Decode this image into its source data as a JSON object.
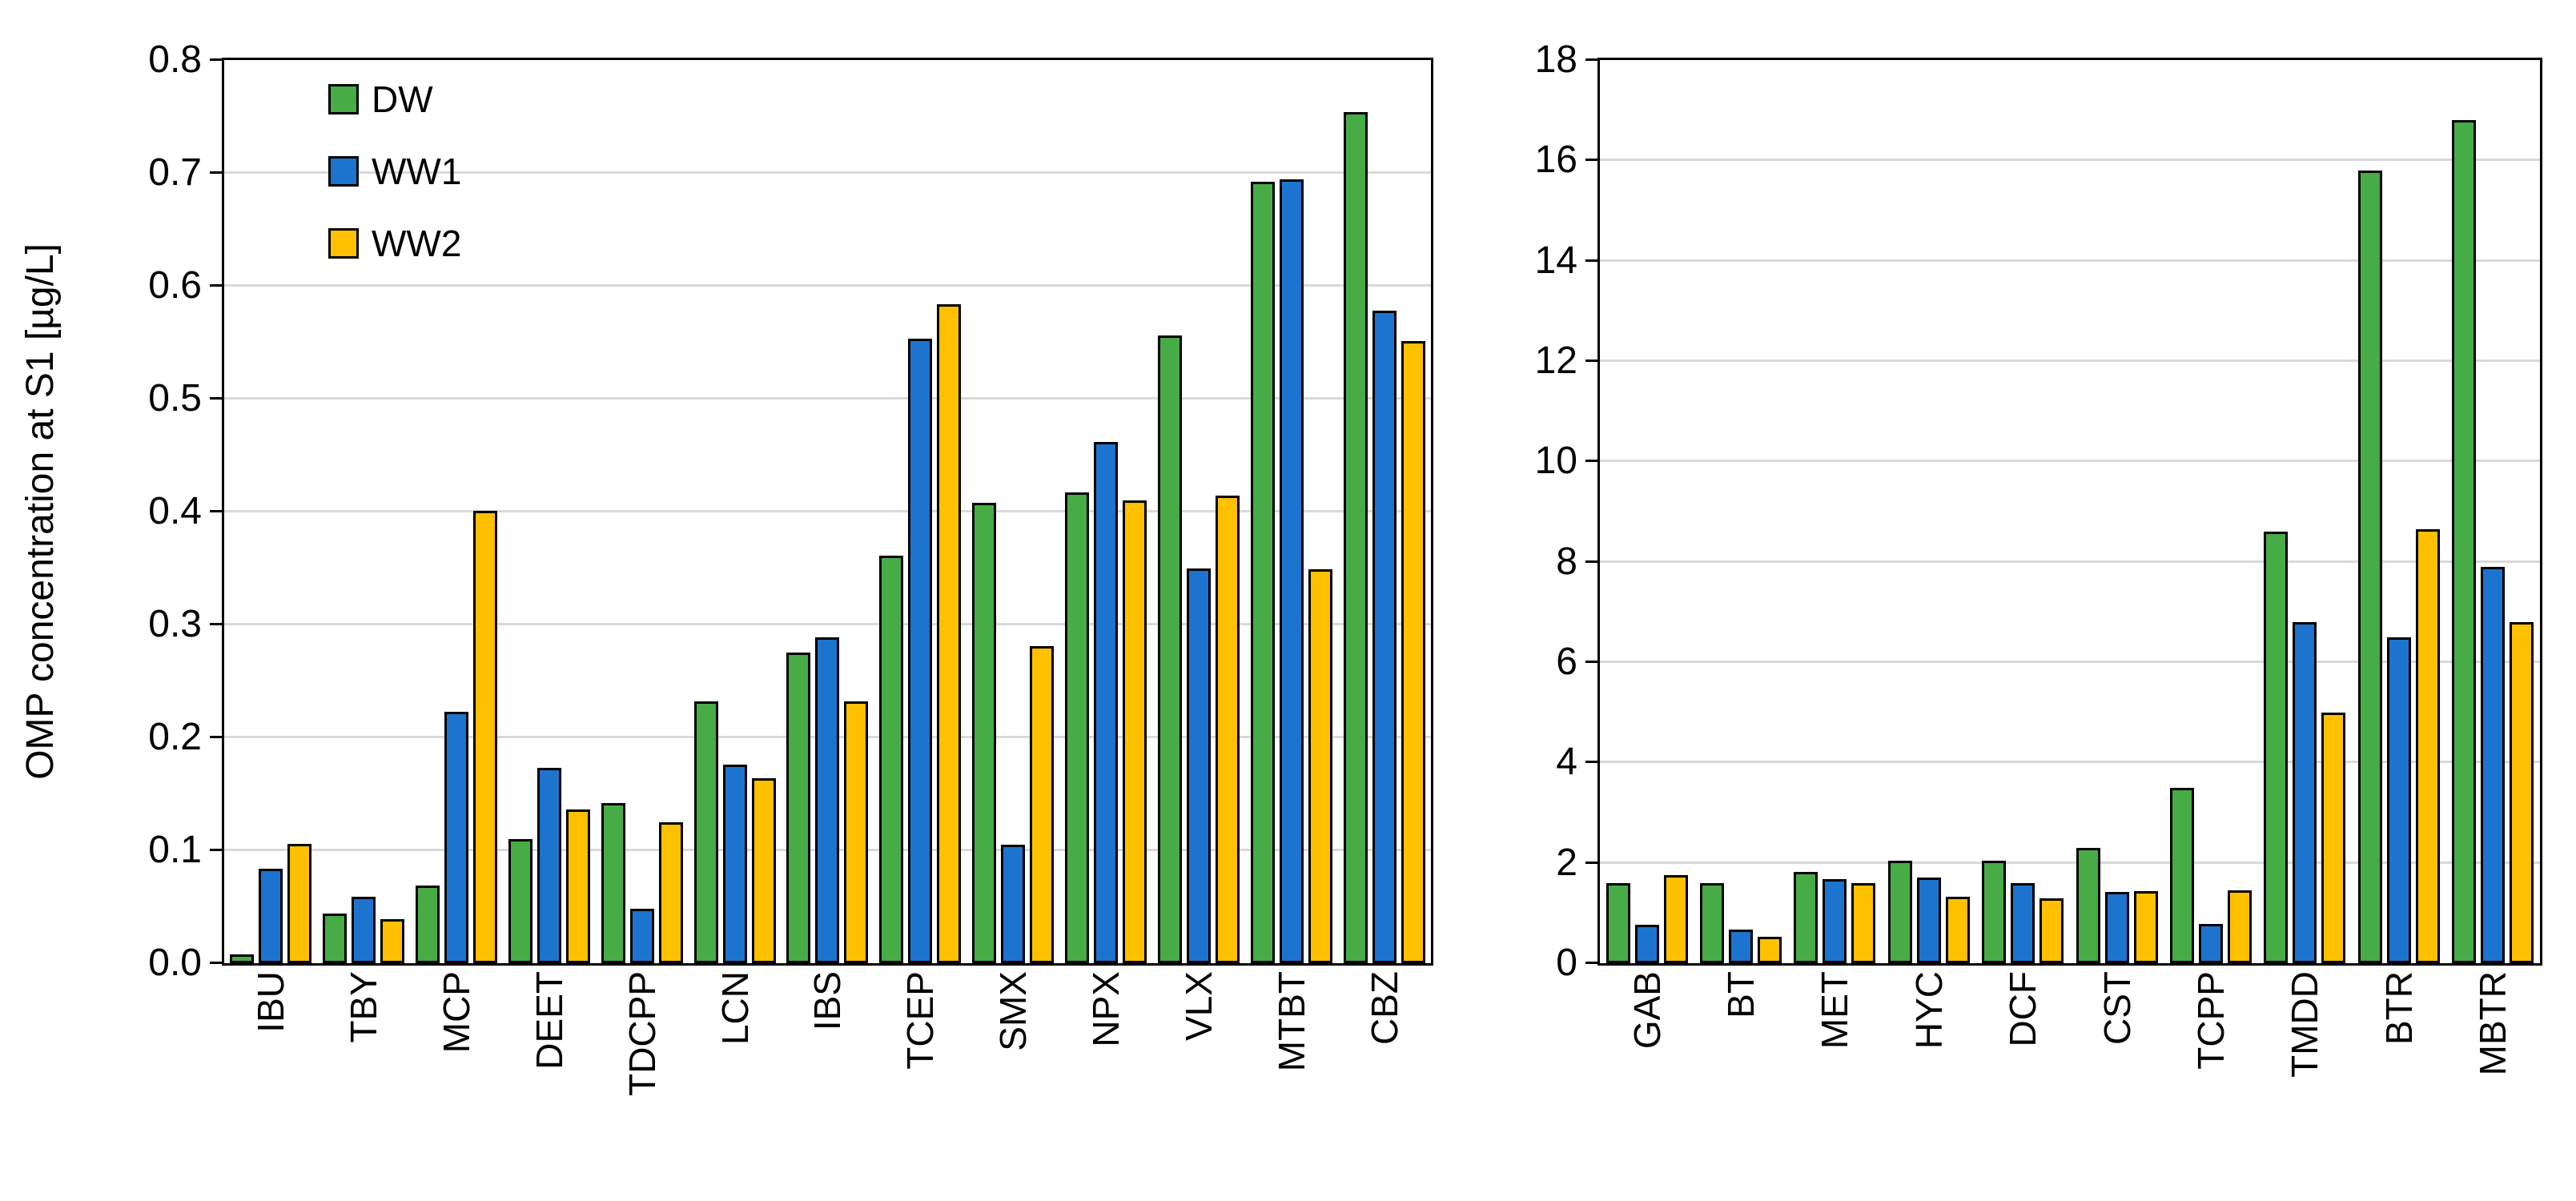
{
  "figure": {
    "background": "#FFFFFF",
    "gridline_color": "#D9D9D9",
    "axis_color": "#000000"
  },
  "chart_data": [
    {
      "type": "bar",
      "panel": "left",
      "title": "",
      "xlabel": "",
      "ylabel": "OMP concentration at S1 [µg/L]",
      "ylim": [
        0,
        0.8
      ],
      "ytick_step": 0.1,
      "ytick_decimals": 1,
      "grid": true,
      "show_legend": true,
      "legend_position": "inside-top-left",
      "legend_entries": [
        "DW",
        "WW1",
        "WW2"
      ],
      "categories": [
        "IBU",
        "TBY",
        "MCP",
        "DEET",
        "TDCPP",
        "LCN",
        "IBS",
        "TCEP",
        "SMX",
        "NPX",
        "VLX",
        "MTBT",
        "CBZ"
      ],
      "series": [
        {
          "name": "DW",
          "color": "#47AC45",
          "values": [
            0.008,
            0.044,
            0.069,
            0.11,
            0.142,
            0.232,
            0.275,
            0.361,
            0.408,
            0.417,
            0.556,
            0.692,
            0.754
          ]
        },
        {
          "name": "WW1",
          "color": "#1D74CE",
          "values": [
            0.084,
            0.059,
            0.223,
            0.173,
            0.048,
            0.176,
            0.289,
            0.553,
            0.105,
            0.462,
            0.35,
            0.694,
            0.578
          ]
        },
        {
          "name": "WW2",
          "color": "#FFC000",
          "values": [
            0.106,
            0.039,
            0.401,
            0.136,
            0.125,
            0.164,
            0.232,
            0.584,
            0.281,
            0.41,
            0.414,
            0.349,
            0.551
          ]
        }
      ]
    },
    {
      "type": "bar",
      "panel": "right",
      "title": "",
      "xlabel": "",
      "ylabel": "",
      "ylim": [
        0,
        18
      ],
      "ytick_step": 2,
      "ytick_decimals": 0,
      "grid": true,
      "show_legend": false,
      "legend_position": "none",
      "legend_entries": [],
      "categories": [
        "GAB",
        "BT",
        "MET",
        "HYC",
        "DCF",
        "CST",
        "TCPP",
        "TMDD",
        "BTR",
        "MBTR"
      ],
      "series": [
        {
          "name": "DW",
          "color": "#47AC45",
          "values": [
            1.6,
            1.6,
            1.82,
            2.05,
            2.05,
            2.3,
            3.5,
            8.6,
            15.8,
            16.8
          ]
        },
        {
          "name": "WW1",
          "color": "#1D74CE",
          "values": [
            0.77,
            0.67,
            1.68,
            1.7,
            1.6,
            1.42,
            0.78,
            6.8,
            6.5,
            7.9
          ]
        },
        {
          "name": "WW2",
          "color": "#FFC000",
          "values": [
            1.75,
            0.52,
            1.6,
            1.32,
            1.3,
            1.44,
            1.45,
            5.0,
            8.65,
            6.8
          ]
        }
      ]
    }
  ]
}
